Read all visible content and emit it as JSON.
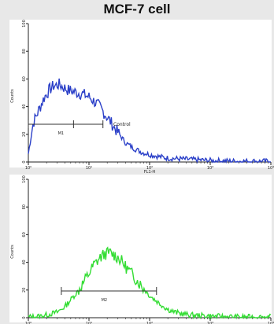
{
  "title": "MCF-7 cell",
  "colors": {
    "control": "#2a3fc8",
    "sample": "#33dd33",
    "panel": "#ffffff",
    "axis": "#222222"
  },
  "chart_data": [
    {
      "type": "area",
      "panel": "top",
      "xscale": "log",
      "xlim": [
        1,
        10000
      ],
      "ylim": [
        0,
        100
      ],
      "xticks": [
        "10⁰",
        "10¹",
        "10²",
        "10³",
        "10⁴"
      ],
      "yticks": [
        "0",
        "20",
        "40",
        "60",
        "80",
        "100"
      ],
      "xlabel": "FL1-H",
      "ylabel": "Counts",
      "series": [
        {
          "name": "Control",
          "color": "#2a3fc8",
          "x": [
            1,
            1.2,
            1.5,
            1.8,
            2.2,
            2.6,
            3.2,
            3.8,
            4.5,
            5.5,
            6.5,
            8,
            10,
            12,
            15,
            18,
            22,
            27,
            33,
            40,
            50,
            60,
            75,
            90,
            110,
            140,
            180,
            250,
            400,
            1000,
            3000,
            10000
          ],
          "y": [
            6,
            28,
            38,
            46,
            52,
            55,
            56,
            54,
            52,
            51,
            50,
            49,
            47,
            44,
            40,
            35,
            30,
            24,
            19,
            14,
            11,
            9,
            7,
            6,
            5,
            4,
            3,
            2.5,
            2,
            1,
            0.5,
            0.5
          ]
        }
      ],
      "gate": {
        "label": "M1",
        "x": [
          1,
          17
        ]
      },
      "annotation": "Control"
    },
    {
      "type": "area",
      "panel": "bottom",
      "xscale": "log",
      "xlim": [
        1,
        10000
      ],
      "ylim": [
        0,
        100
      ],
      "xticks": [
        "10⁰",
        "10¹",
        "10²",
        "10³",
        "10⁴"
      ],
      "yticks": [
        "0",
        "20",
        "40",
        "60",
        "80",
        "100"
      ],
      "xlabel": "",
      "ylabel": "Counts",
      "series": [
        {
          "color": "#33dd33",
          "x": [
            1,
            1.5,
            2,
            3,
            4,
            5,
            6.5,
            8,
            10,
            12,
            15,
            18,
            22,
            27,
            33,
            40,
            50,
            65,
            80,
            100,
            130,
            160,
            200,
            260,
            330,
            450,
            700,
            1200,
            3000,
            10000
          ],
          "y": [
            0.5,
            1,
            2,
            4,
            8,
            13,
            19,
            25,
            32,
            38,
            43,
            46,
            47,
            45,
            42,
            37,
            32,
            26,
            21,
            16,
            12,
            9,
            6,
            4,
            3,
            2,
            1.5,
            1,
            0.5,
            0.5
          ]
        }
      ],
      "gate": {
        "label": "M2",
        "x": [
          3.5,
          130
        ]
      }
    }
  ]
}
